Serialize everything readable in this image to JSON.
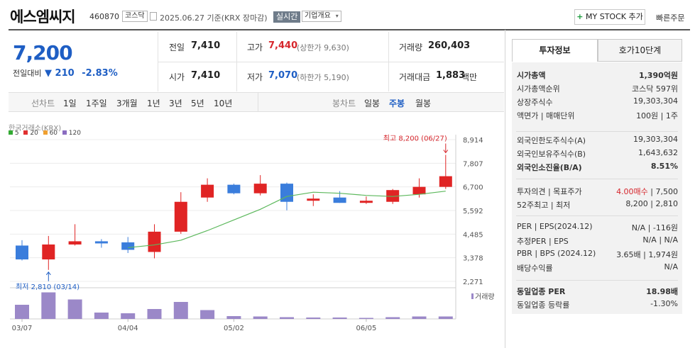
{
  "header": {
    "name": "에스엠씨지",
    "code": "460870",
    "market_badge": "코스닥",
    "date_info": "2025.06.27 기준(KRX 장마감)",
    "realtime_badge": "실시간",
    "company_dropdown": "기업개요",
    "mystock_label": "MY STOCK 추가",
    "quick_order": "빠른주문"
  },
  "quote": {
    "price": "7,200",
    "diff_label": "전일대비",
    "diff_arrow": "▼",
    "diff_value": "210",
    "diff_rate": "-2.83%",
    "prev_close_label": "전일",
    "prev_close": "7,410",
    "open_label": "시가",
    "open": "7,410",
    "high_label": "고가",
    "high": "7,440",
    "upper_limit": "(상한가 9,630)",
    "low_label": "저가",
    "low": "7,070",
    "lower_limit": "(하한가 5,190)",
    "volume_label": "거래량",
    "volume": "260,403",
    "amount_label": "거래대금",
    "amount": "1,883",
    "amount_unit": "백만"
  },
  "chart_tabs": {
    "line_label": "선차트",
    "line_items": [
      "1일",
      "1주일",
      "3개월",
      "1년",
      "3년",
      "5년",
      "10년"
    ],
    "candle_label": "봉차트",
    "candle_items": [
      "일봉",
      "주봉",
      "월봉"
    ],
    "candle_selected": "주봉"
  },
  "chart_data": {
    "type": "candlestick",
    "source_label": "한국거래소(KRX)",
    "legend": [
      {
        "name": "5",
        "color": "#33aa33"
      },
      {
        "name": "20",
        "color": "#e03030"
      },
      {
        "name": "60",
        "color": "#f0a030"
      },
      {
        "name": "120",
        "color": "#8a6cc0"
      }
    ],
    "y_ticks": [
      "8,914",
      "7,807",
      "6,700",
      "5,592",
      "4,485",
      "3,378",
      "2,271"
    ],
    "ylim": [
      2271,
      8914
    ],
    "x_ticks": [
      {
        "label": "03/07",
        "index": 0
      },
      {
        "label": "04/04",
        "index": 4
      },
      {
        "label": "05/02",
        "index": 8
      },
      {
        "label": "06/05",
        "index": 13
      }
    ],
    "max_label": "최고 8,200 (06/27)",
    "min_label": "최저 2,810 (03/14)",
    "volume_label": "거래량",
    "candles": [
      {
        "o": 3950,
        "h": 4200,
        "l": 3250,
        "c": 3300
      },
      {
        "o": 3300,
        "h": 4400,
        "l": 2810,
        "c": 4000
      },
      {
        "o": 4000,
        "h": 4950,
        "l": 3950,
        "c": 4150
      },
      {
        "o": 4150,
        "h": 4250,
        "l": 3850,
        "c": 4050
      },
      {
        "o": 4100,
        "h": 4350,
        "l": 3600,
        "c": 3750
      },
      {
        "o": 3650,
        "h": 4950,
        "l": 3350,
        "c": 4600
      },
      {
        "o": 4600,
        "h": 6450,
        "l": 4500,
        "c": 6000
      },
      {
        "o": 6200,
        "h": 7100,
        "l": 6000,
        "c": 6800
      },
      {
        "o": 6800,
        "h": 6850,
        "l": 6350,
        "c": 6400
      },
      {
        "o": 6400,
        "h": 7250,
        "l": 6300,
        "c": 6850
      },
      {
        "o": 6850,
        "h": 6900,
        "l": 5600,
        "c": 6000
      },
      {
        "o": 6050,
        "h": 6350,
        "l": 5800,
        "c": 6150
      },
      {
        "o": 6200,
        "h": 6500,
        "l": 5950,
        "c": 5950
      },
      {
        "o": 6000,
        "h": 6250,
        "l": 5900,
        "c": 6050
      },
      {
        "o": 6000,
        "h": 6600,
        "l": 5900,
        "c": 6550
      },
      {
        "o": 6350,
        "h": 7100,
        "l": 6200,
        "c": 6700
      },
      {
        "o": 6700,
        "h": 8200,
        "l": 6600,
        "c": 7200
      }
    ],
    "ma5": [
      null,
      null,
      null,
      null,
      3850,
      3980,
      4200,
      4650,
      5150,
      5650,
      6250,
      6450,
      6400,
      6300,
      6250,
      6350,
      6500
    ],
    "volumes": [
      40,
      75,
      55,
      18,
      16,
      28,
      48,
      25,
      8,
      7,
      5,
      4,
      4,
      3,
      5,
      7,
      7
    ]
  },
  "panel": {
    "tab_invest": "투자정보",
    "tab_order": "호가10단계",
    "rows1": [
      {
        "label": "시가총액",
        "value": "1,390억원",
        "bold": true
      },
      {
        "label": "시가총액순위",
        "value": "코스닥 597위",
        "bold": false
      },
      {
        "label": "상장주식수",
        "value": "19,303,304",
        "bold": false
      },
      {
        "label": "액면가 | 매매단위",
        "value": "100원 | 1주",
        "bold": false
      }
    ],
    "rows2": [
      {
        "label": "외국인한도주식수(A)",
        "value": "19,303,304",
        "bold": false
      },
      {
        "label": "외국인보유주식수(B)",
        "value": "1,643,632",
        "bold": false
      },
      {
        "label": "외국인소진율(B/A)",
        "value": "8.51%",
        "bold": true
      }
    ],
    "invest_opinion_label": "투자의견 | 목표주가",
    "invest_opinion": "4.00매수",
    "target_price": "| 7,500",
    "week52_label": "52주최고 | 최저",
    "week52_value": "8,200 | 2,810",
    "rows4": [
      {
        "label": "PER | EPS(2024.12)",
        "value": "N/A | -116원"
      },
      {
        "label": "추정PER | EPS",
        "value": "N/A | N/A"
      },
      {
        "label": "PBR | BPS (2024.12)",
        "value": "3.65배 | 1,974원"
      },
      {
        "label": "배당수익률",
        "value": "N/A"
      }
    ],
    "industry_per_label": "동일업종 PER",
    "industry_per": "18.98배",
    "industry_rate_label": "동일업종 등락률",
    "industry_rate": "-1.30%"
  },
  "colors": {
    "up": "#e02424",
    "down": "#3a7ddc",
    "ma5": "#5cb85c",
    "volume": "#9b88c8"
  }
}
